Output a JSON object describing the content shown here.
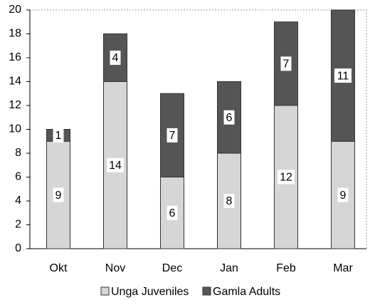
{
  "chart_data": {
    "type": "stacked_bar",
    "categories": [
      "Okt",
      "Nov",
      "Dec",
      "Jan",
      "Feb",
      "Mar"
    ],
    "series": [
      {
        "name": "Unga Juveniles",
        "color": "#d6d6d6",
        "values": [
          9,
          14,
          6,
          8,
          12,
          9
        ]
      },
      {
        "name": "Gamla Adults",
        "color": "#555555",
        "values": [
          1,
          4,
          7,
          6,
          7,
          11
        ]
      }
    ],
    "ylim": [
      0,
      20
    ],
    "yticks": [
      0,
      2,
      4,
      6,
      8,
      10,
      12,
      14,
      16,
      18,
      20
    ],
    "grid": false,
    "legend": "bottom"
  }
}
